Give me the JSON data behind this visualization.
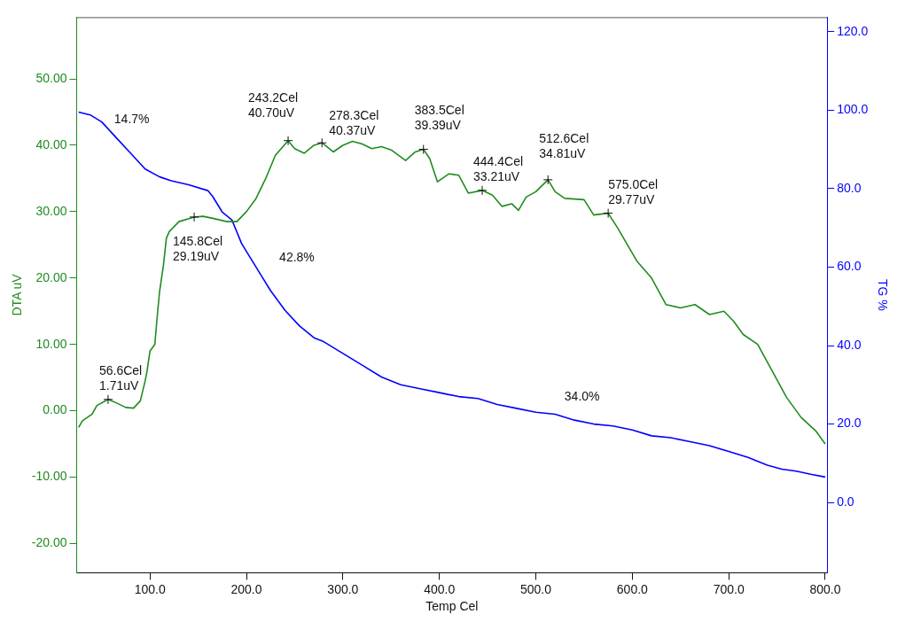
{
  "chart_data": {
    "type": "line",
    "xlabel": "Temp Cel",
    "ylabel": "DTA uV",
    "y2label": "TG %",
    "xlim": [
      24,
      802
    ],
    "xticks": [
      {
        "value": 100,
        "label": "100.0"
      },
      {
        "value": 200,
        "label": "200.0"
      },
      {
        "value": 300,
        "label": "300.0"
      },
      {
        "value": 400,
        "label": "400.0"
      },
      {
        "value": 500,
        "label": "500.0"
      },
      {
        "value": 600,
        "label": "600.0"
      },
      {
        "value": 700,
        "label": "700.0"
      },
      {
        "value": 800,
        "label": "800.0"
      }
    ],
    "ylim": [
      -24.4,
      59.3
    ],
    "yticks": [
      {
        "value": -20,
        "label": "-20.00"
      },
      {
        "value": -10,
        "label": "-10.00"
      },
      {
        "value": 0,
        "label": "0.00"
      },
      {
        "value": 10,
        "label": "10.00"
      },
      {
        "value": 20,
        "label": "20.00"
      },
      {
        "value": 30,
        "label": "30.00"
      },
      {
        "value": 40,
        "label": "40.00"
      },
      {
        "value": 50,
        "label": "50.00"
      }
    ],
    "y2lim": [
      -17.9,
      123.7
    ],
    "y2ticks": [
      {
        "value": 0,
        "label": "0.0"
      },
      {
        "value": 20,
        "label": "20.0"
      },
      {
        "value": 40,
        "label": "40.0"
      },
      {
        "value": 60,
        "label": "60.0"
      },
      {
        "value": 80,
        "label": "80.0"
      },
      {
        "value": 100,
        "label": "100.0"
      },
      {
        "value": 120,
        "label": "120.0"
      }
    ],
    "grid": false,
    "legend": false,
    "marker": "none",
    "line_style": "solid",
    "series": [
      {
        "color": "#1e8c1e",
        "axis": "y",
        "x": [
          26,
          30,
          40,
          45,
          56.6,
          65,
          75,
          83,
          90,
          95,
          97,
          100,
          105,
          108,
          110,
          114,
          117,
          120,
          130,
          145.8,
          155,
          165,
          180,
          190,
          200,
          210,
          220,
          230,
          243.2,
          250,
          260,
          270,
          278.3,
          290,
          300,
          310,
          320,
          330,
          340,
          350,
          365,
          375,
          383.5,
          390,
          398,
          410,
          420,
          430,
          444.4,
          455,
          465,
          475,
          482,
          490,
          500,
          512.6,
          520,
          530,
          550,
          560,
          575,
          585,
          595,
          605,
          620,
          635,
          650,
          665,
          680,
          695,
          705,
          715,
          730,
          745,
          760,
          775,
          790,
          800
        ],
        "values": [
          -2.5,
          -1.5,
          -0.5,
          0.8,
          1.71,
          1.2,
          0.5,
          0.4,
          1.5,
          4.5,
          6,
          9,
          10,
          15,
          18,
          22,
          26,
          27,
          28.5,
          29.19,
          29.3,
          29,
          28.5,
          28.5,
          30,
          32,
          35,
          38.5,
          40.7,
          39.5,
          38.8,
          40,
          40.37,
          39,
          40,
          40.6,
          40.2,
          39.5,
          39.8,
          39.3,
          37.7,
          39,
          39.39,
          38,
          34.5,
          35.7,
          35.5,
          32.8,
          33.21,
          32.5,
          30.8,
          31.2,
          30.2,
          32.2,
          33,
          34.81,
          33,
          32,
          31.8,
          29.5,
          29.77,
          27.5,
          25,
          22.5,
          20,
          16,
          15.5,
          16,
          14.5,
          15,
          13.5,
          11.5,
          10,
          6,
          2,
          -1,
          -3,
          -5
        ]
      },
      {
        "color": "#0000ff",
        "axis": "y2",
        "x": [
          26,
          38,
          50,
          65,
          80,
          95,
          110,
          122,
          140,
          160,
          165,
          175,
          185,
          195,
          205,
          215,
          225,
          240,
          255,
          270,
          280,
          300,
          320,
          340,
          360,
          380,
          400,
          420,
          440,
          460,
          480,
          500,
          520,
          540,
          560,
          580,
          600,
          620,
          640,
          660,
          680,
          700,
          720,
          740,
          755,
          770,
          785,
          800
        ],
        "values": [
          99.5,
          98.8,
          97,
          93,
          89,
          85,
          83,
          82,
          81,
          79.5,
          78,
          74,
          72,
          66,
          62,
          58,
          54,
          49,
          45,
          42,
          41,
          38,
          35,
          32,
          30,
          29,
          28,
          27,
          26.5,
          25,
          24,
          23,
          22.5,
          21,
          20,
          19.5,
          18.5,
          17,
          16.5,
          15.5,
          14.5,
          13,
          11.5,
          9.5,
          8.5,
          8,
          7.2,
          6.5
        ]
      }
    ],
    "annotations": [
      {
        "text": "56.6Cel\n1.71uV",
        "x": 56.6,
        "y": 1.71
      },
      {
        "text": "145.8Cel\n29.19uV",
        "x": 145.8,
        "y": 29.19
      },
      {
        "text": "243.2Cel\n40.70uV",
        "x": 243.2,
        "y": 40.7
      },
      {
        "text": "278.3Cel\n40.37uV",
        "x": 278.3,
        "y": 40.37
      },
      {
        "text": "383.5Cel\n39.39uV",
        "x": 383.5,
        "y": 39.39
      },
      {
        "text": "444.4Cel\n33.21uV",
        "x": 444.4,
        "y": 33.21
      },
      {
        "text": "512.6Cel\n34.81uV",
        "x": 512.6,
        "y": 34.81
      },
      {
        "text": "575.0Cel\n29.77uV",
        "x": 575,
        "y": 29.77
      },
      "14.7%",
      "42.8%",
      "34.0%"
    ]
  }
}
